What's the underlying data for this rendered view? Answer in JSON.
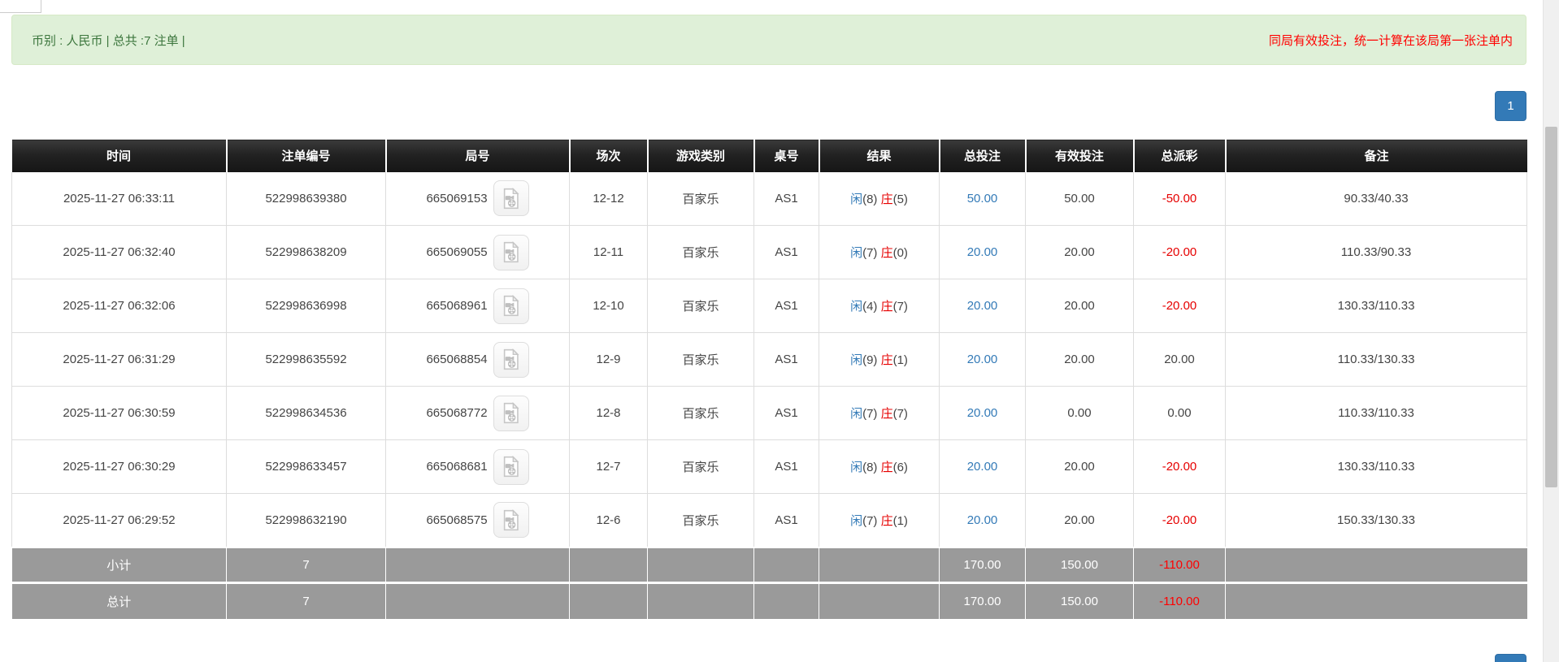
{
  "banner": {
    "summary": "币别 : 人民币 | 总共 :7 注单 |",
    "notice": "同局有效投注，统一计算在该局第一张注单内"
  },
  "pagination": {
    "page": "1"
  },
  "icons": {
    "round_action": "video-file-icon"
  },
  "colors": {
    "accent_blue": "#337ab7",
    "negative_red": "#e60000",
    "banner_bg": "#dff0d8",
    "banner_text": "#3c763d",
    "notice_red": "#ff0000",
    "header_bg": "#1b1b1b",
    "footer_bg": "#9a9a9a"
  },
  "table": {
    "columns": [
      "时间",
      "注单编号",
      "局号",
      "场次",
      "游戏类别",
      "桌号",
      "结果",
      "总投注",
      "有效投注",
      "总派彩",
      "备注"
    ],
    "rows": [
      {
        "time": "2025-11-27 06:33:11",
        "bet_id": "522998639380",
        "round_id": "665069153",
        "session": "12-12",
        "game": "百家乐",
        "table_no": "AS1",
        "result": {
          "p": "闲",
          "pn": "(8)",
          "b": "庄",
          "bn": "(5)"
        },
        "total_bet": "50.00",
        "valid_bet": "50.00",
        "payout": "-50.00",
        "remark": "90.33/40.33"
      },
      {
        "time": "2025-11-27 06:32:40",
        "bet_id": "522998638209",
        "round_id": "665069055",
        "session": "12-11",
        "game": "百家乐",
        "table_no": "AS1",
        "result": {
          "p": "闲",
          "pn": "(7)",
          "b": "庄",
          "bn": "(0)"
        },
        "total_bet": "20.00",
        "valid_bet": "20.00",
        "payout": "-20.00",
        "remark": "110.33/90.33"
      },
      {
        "time": "2025-11-27 06:32:06",
        "bet_id": "522998636998",
        "round_id": "665068961",
        "session": "12-10",
        "game": "百家乐",
        "table_no": "AS1",
        "result": {
          "p": "闲",
          "pn": "(4)",
          "b": "庄",
          "bn": "(7)"
        },
        "total_bet": "20.00",
        "valid_bet": "20.00",
        "payout": "-20.00",
        "remark": "130.33/110.33"
      },
      {
        "time": "2025-11-27 06:31:29",
        "bet_id": "522998635592",
        "round_id": "665068854",
        "session": "12-9",
        "game": "百家乐",
        "table_no": "AS1",
        "result": {
          "p": "闲",
          "pn": "(9)",
          "b": "庄",
          "bn": "(1)"
        },
        "total_bet": "20.00",
        "valid_bet": "20.00",
        "payout": "20.00",
        "remark": "110.33/130.33"
      },
      {
        "time": "2025-11-27 06:30:59",
        "bet_id": "522998634536",
        "round_id": "665068772",
        "session": "12-8",
        "game": "百家乐",
        "table_no": "AS1",
        "result": {
          "p": "闲",
          "pn": "(7)",
          "b": "庄",
          "bn": "(7)"
        },
        "total_bet": "20.00",
        "valid_bet": "0.00",
        "payout": "0.00",
        "remark": "110.33/110.33"
      },
      {
        "time": "2025-11-27 06:30:29",
        "bet_id": "522998633457",
        "round_id": "665068681",
        "session": "12-7",
        "game": "百家乐",
        "table_no": "AS1",
        "result": {
          "p": "闲",
          "pn": "(8)",
          "b": "庄",
          "bn": "(6)"
        },
        "total_bet": "20.00",
        "valid_bet": "20.00",
        "payout": "-20.00",
        "remark": "130.33/110.33"
      },
      {
        "time": "2025-11-27 06:29:52",
        "bet_id": "522998632190",
        "round_id": "665068575",
        "session": "12-6",
        "game": "百家乐",
        "table_no": "AS1",
        "result": {
          "p": "闲",
          "pn": "(7)",
          "b": "庄",
          "bn": "(1)"
        },
        "total_bet": "20.00",
        "valid_bet": "20.00",
        "payout": "-20.00",
        "remark": "150.33/130.33"
      }
    ],
    "subtotal": {
      "label": "小计",
      "count": "7",
      "total_bet": "170.00",
      "valid_bet": "150.00",
      "payout": "-110.00"
    },
    "total": {
      "label": "总计",
      "count": "7",
      "total_bet": "170.00",
      "valid_bet": "150.00",
      "payout": "-110.00"
    }
  }
}
